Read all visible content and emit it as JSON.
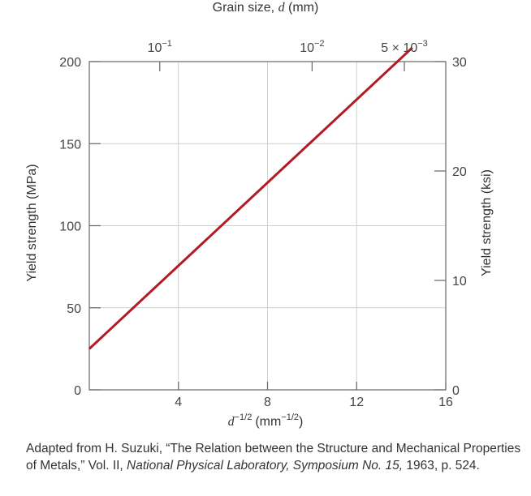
{
  "chart_data": {
    "type": "line",
    "title": "",
    "x": [
      0,
      14.5
    ],
    "series": [
      {
        "values": [
          25,
          208.5
        ]
      }
    ],
    "xlim": [
      0,
      16
    ],
    "xticks": [
      4,
      8,
      12,
      16
    ],
    "xtick_labels": [
      "4",
      "8",
      "12",
      "16"
    ],
    "xlabel": {
      "symbol": "d",
      "exponent": "−1/2",
      "unit_open": "(mm",
      "unit_exponent": "−1/2",
      "unit_close": ")"
    },
    "ylim": [
      0,
      200
    ],
    "yticks": [
      0,
      50,
      100,
      150,
      200
    ],
    "ytick_labels": [
      "0",
      "50",
      "100",
      "150",
      "200"
    ],
    "ylabel": "Yield strength (MPa)",
    "y2lim": [
      0,
      30
    ],
    "y2ticks": [
      0,
      10,
      20,
      30
    ],
    "y2tick_labels": [
      "0",
      "10",
      "20",
      "30"
    ],
    "y2label": "Yield strength (ksi)",
    "top_axis": {
      "label_prefix": "Grain size, ",
      "label_symbol": "d",
      "label_suffix": " (mm)",
      "ticks": [
        {
          "grain_size_mm": 0.1,
          "coef": "",
          "base": "10",
          "exp": "−1"
        },
        {
          "grain_size_mm": 0.01,
          "coef": "",
          "base": "10",
          "exp": "−2"
        },
        {
          "grain_size_mm": 0.005,
          "coef": "5 × ",
          "base": "10",
          "exp": "−3"
        }
      ]
    },
    "grid": true,
    "line_color": "#b01c22"
  },
  "caption": {
    "part1": "Adapted from H. Suzuki, “The Relation between the Structure and Mechanical Properties of Metals,” Vol. II, ",
    "italic1": "National Physical Laboratory, Symposium No. 15,",
    "part2": " 1963, p. 524."
  }
}
